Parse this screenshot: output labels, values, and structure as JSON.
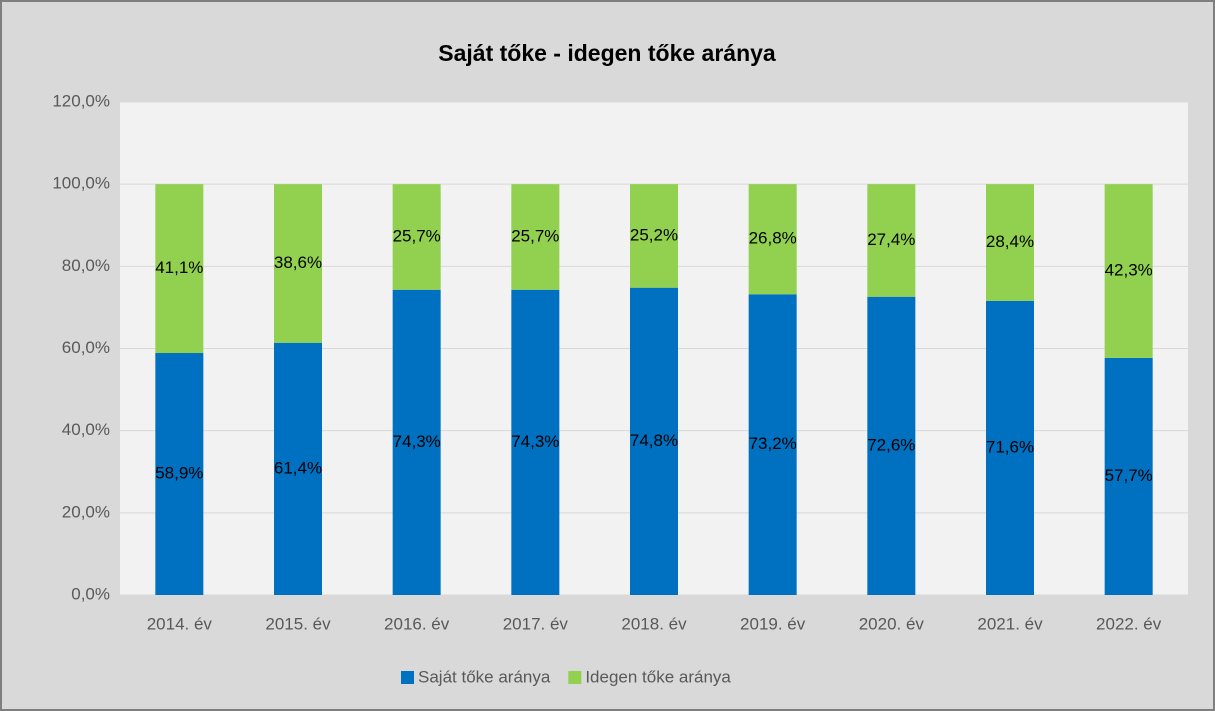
{
  "chart_data": {
    "type": "stacked_bar",
    "title": "Saját tőke - idegen tőke aránya",
    "categories": [
      "2014. év",
      "2015. év",
      "2016. év",
      "2017. év",
      "2018. év",
      "2019. év",
      "2020. év",
      "2021. év",
      "2022. év"
    ],
    "series": [
      {
        "name": "Saját tőke aránya",
        "color": "#0070c0",
        "values": [
          58.9,
          61.4,
          74.3,
          74.3,
          74.8,
          73.2,
          72.6,
          71.6,
          57.7
        ],
        "value_labels": [
          "58,9%",
          "61,4%",
          "74,3%",
          "74,3%",
          "74,8%",
          "73,2%",
          "72,6%",
          "71,6%",
          "57,7%"
        ]
      },
      {
        "name": "Idegen tőke aránya",
        "color": "#92d050",
        "values": [
          41.1,
          38.6,
          25.7,
          25.7,
          25.2,
          26.8,
          27.4,
          28.4,
          42.3
        ],
        "value_labels": [
          "41,1%",
          "38,6%",
          "25,7%",
          "25,7%",
          "25,2%",
          "26,8%",
          "27,4%",
          "28,4%",
          "42,3%"
        ]
      }
    ],
    "ylim": [
      0,
      120
    ],
    "yticks": [
      {
        "value": 0,
        "label": "0,0%"
      },
      {
        "value": 20,
        "label": "20,0%"
      },
      {
        "value": 40,
        "label": "40,0%"
      },
      {
        "value": 60,
        "label": "60,0%"
      },
      {
        "value": 80,
        "label": "80,0%"
      },
      {
        "value": 100,
        "label": "100,0%"
      },
      {
        "value": 120,
        "label": "120,0%"
      }
    ],
    "grid": true,
    "legend": "bottom"
  }
}
